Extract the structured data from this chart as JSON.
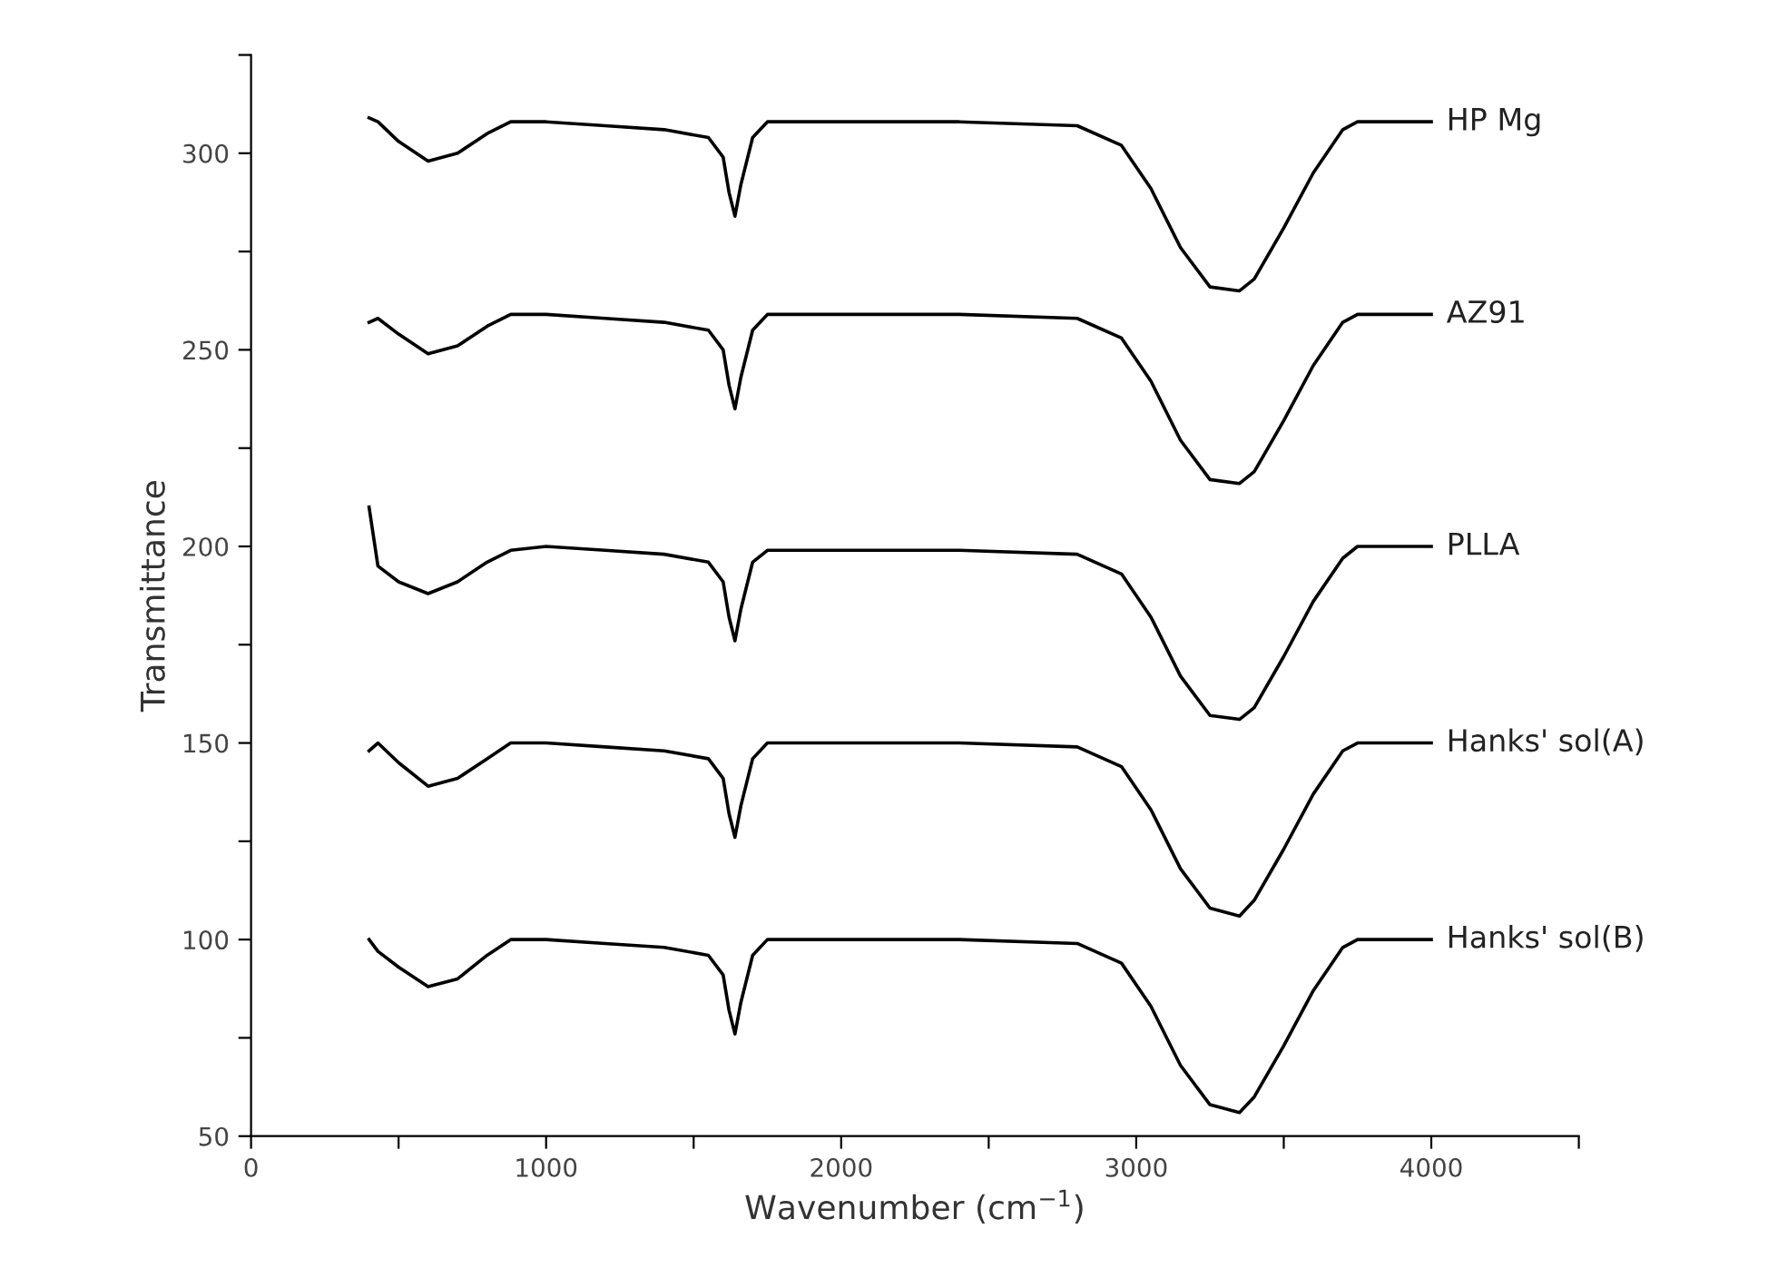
{
  "chart_data": {
    "type": "line",
    "xlabel": "Wavenumber (cm$^{−1}$)",
    "ylabel": "Transmittance",
    "x": [
      400,
      430,
      500,
      600,
      700,
      800,
      880,
      1000,
      1200,
      1400,
      1550,
      1600,
      1620,
      1640,
      1660,
      1700,
      1750,
      1800,
      2000,
      2400,
      2800,
      2950,
      3050,
      3150,
      3250,
      3350,
      3400,
      3500,
      3600,
      3700,
      3750,
      4000
    ],
    "series": [
      {
        "name": "HP Mg",
        "color": "#000000",
        "values": [
          309,
          308,
          303,
          298,
          300,
          305,
          308,
          308,
          307,
          306,
          304,
          299,
          290,
          284,
          292,
          304,
          308,
          308,
          308,
          308,
          307,
          302,
          291,
          276,
          266,
          265,
          268,
          281,
          295,
          306,
          308,
          308
        ]
      },
      {
        "name": "AZ91",
        "color": "#000000",
        "values": [
          257,
          258,
          254,
          249,
          251,
          256,
          259,
          259,
          258,
          257,
          255,
          250,
          241,
          235,
          243,
          255,
          259,
          259,
          259,
          259,
          258,
          253,
          242,
          227,
          217,
          216,
          219,
          232,
          246,
          257,
          259,
          259
        ]
      },
      {
        "name": "PLLA",
        "color": "#000000",
        "values": [
          210,
          195,
          191,
          188,
          191,
          196,
          199,
          200,
          199,
          198,
          196,
          191,
          182,
          176,
          184,
          196,
          199,
          199,
          199,
          199,
          198,
          193,
          182,
          167,
          157,
          156,
          159,
          172,
          186,
          197,
          200,
          200
        ]
      },
      {
        "name": "Hanks' sol(A)",
        "color": "#000000",
        "values": [
          148,
          150,
          145,
          139,
          141,
          146,
          150,
          150,
          149,
          148,
          146,
          141,
          132,
          126,
          134,
          146,
          150,
          150,
          150,
          150,
          149,
          144,
          133,
          118,
          108,
          106,
          110,
          123,
          137,
          148,
          150,
          150
        ]
      },
      {
        "name": "Hanks' sol(B)",
        "color": "#000000",
        "values": [
          100,
          97,
          93,
          88,
          90,
          96,
          100,
          100,
          99,
          98,
          96,
          91,
          82,
          76,
          84,
          96,
          100,
          100,
          100,
          100,
          99,
          94,
          83,
          68,
          58,
          56,
          60,
          73,
          87,
          98,
          100,
          100
        ]
      }
    ],
    "xlim": [
      0,
      4500
    ],
    "ylim": [
      50,
      325
    ],
    "xticks": [
      0,
      {
        "value": 500,
        "label": null
      },
      1000,
      {
        "value": 1500,
        "label": null
      },
      2000,
      {
        "value": 2500,
        "label": null
      },
      3000,
      {
        "value": 3500,
        "label": null
      },
      4000,
      {
        "value": 4500,
        "label": null
      }
    ],
    "yticks": [
      50,
      {
        "value": 75,
        "label": null
      },
      100,
      {
        "value": 125,
        "label": null
      },
      150,
      {
        "value": 175,
        "label": null
      },
      200,
      {
        "value": 225,
        "label": null
      },
      250,
      {
        "value": 275,
        "label": null
      },
      300,
      {
        "value": 325,
        "label": null
      }
    ],
    "grid": false,
    "legend": false,
    "marker": "none",
    "line_style": "solid"
  }
}
